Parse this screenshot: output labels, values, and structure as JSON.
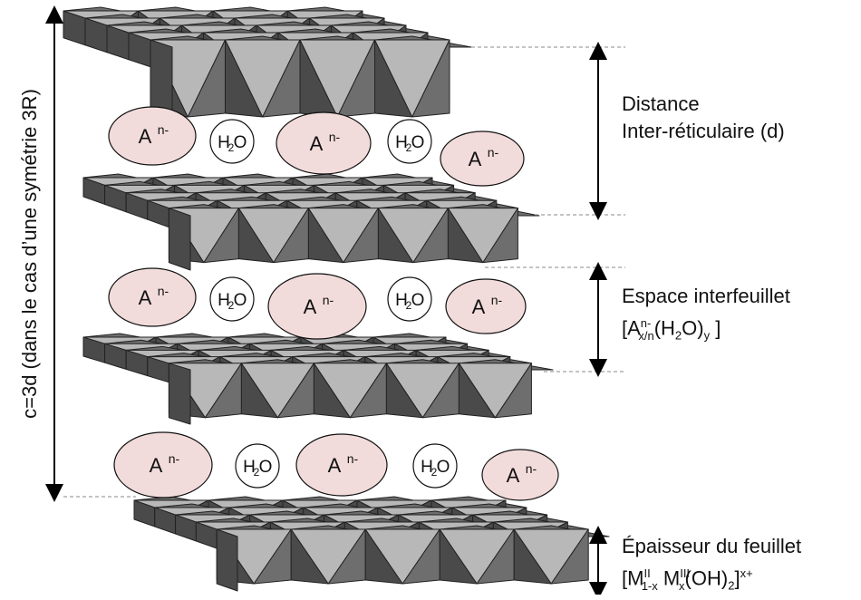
{
  "side_label": "c=3d (dans le cas d’une symétrie 3R)",
  "labels": {
    "distance_line1": "Distance",
    "distance_line2": "Inter-réticulaire (d)",
    "espace_line1": "Espace interfeuillet",
    "espace_formula": {
      "open": "[A",
      "sup_n": "n-",
      "sub_xn": "x/n",
      "mid": "(H",
      "sub_2": "2",
      "mid2": "O)",
      "sub_y": "y",
      "close": " ]"
    },
    "epaisseur_line1": "Épaisseur du feuillet",
    "epaisseur_formula": {
      "open": "[M",
      "sup_ii": "II",
      "sub_1x": "1-x",
      "mid": " M",
      "sup_iii": "III",
      "sub_x": "x",
      "mid2": "(OH)",
      "sub_2": "2",
      "close": "]",
      "sup_xplus": "x+"
    }
  },
  "ions": {
    "anion_text": "A",
    "anion_charge": "n-",
    "water_h": "H",
    "water_sub": "2",
    "water_o": "O"
  },
  "colors": {
    "anion_fill": "#f2dcdb",
    "water_fill": "#ffffff",
    "octa_dark": "#4a4a4a",
    "octa_mid": "#6e6e6e",
    "octa_light": "#b8b8b8",
    "octa_edge": "#222222"
  }
}
